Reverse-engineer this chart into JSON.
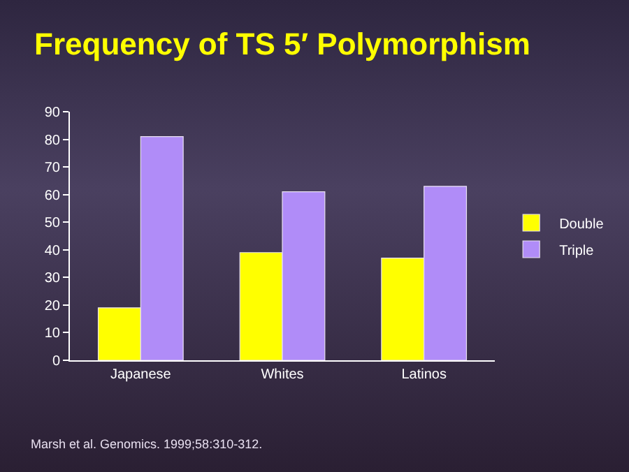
{
  "chart_data": {
    "type": "bar",
    "title": "Frequency of TS 5′ Polymorphism",
    "categories": [
      "Japanese",
      "Whites",
      "Latinos"
    ],
    "series": [
      {
        "name": "Double",
        "color": "#ffff00",
        "values": [
          19,
          39,
          37
        ]
      },
      {
        "name": "Triple",
        "color": "#b08cf8",
        "values": [
          81,
          61,
          63
        ]
      }
    ],
    "ylim": [
      0,
      90
    ],
    "yticks": [
      0,
      10,
      20,
      30,
      40,
      50,
      60,
      70,
      80,
      90
    ],
    "grid": false,
    "legend": "right",
    "annotations": [
      "Marsh et al. Genomics. 1999;58:310-312."
    ]
  }
}
